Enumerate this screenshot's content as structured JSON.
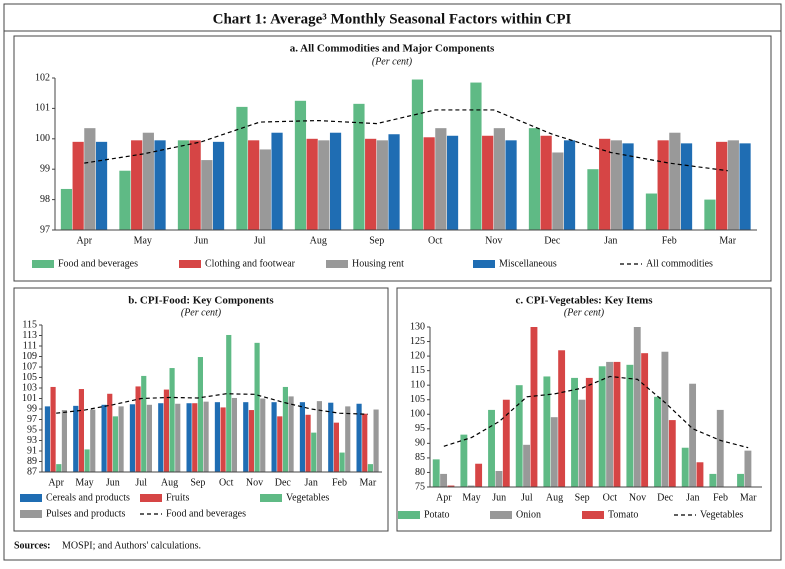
{
  "title": "Chart 1: Average³ Monthly Seasonal Factors within CPI",
  "source_label": "Sources:",
  "source_text": "MOSPI; and Authors' calculations.",
  "chart_data": [
    {
      "type": "bar",
      "title": "a. All Commodities and Major Components",
      "subtitle": "(Per cent)",
      "categories": [
        "Apr",
        "May",
        "Jun",
        "Jul",
        "Aug",
        "Sep",
        "Oct",
        "Nov",
        "Dec",
        "Jan",
        "Feb",
        "Mar"
      ],
      "ylim": [
        97,
        102
      ],
      "yticks": [
        97,
        98,
        99,
        100,
        101,
        102
      ],
      "series": [
        {
          "name": "Food and beverages",
          "color": "#5fba85",
          "values": [
            98.35,
            98.95,
            99.95,
            101.05,
            101.25,
            101.15,
            101.95,
            101.85,
            100.35,
            99.0,
            98.2,
            98.0
          ]
        },
        {
          "name": "Clothing and footwear",
          "color": "#d64545",
          "values": [
            99.9,
            99.95,
            99.95,
            99.95,
            100.0,
            100.0,
            100.05,
            100.1,
            100.1,
            100.0,
            99.95,
            99.9
          ]
        },
        {
          "name": "Housing rent",
          "color": "#999999",
          "values": [
            100.35,
            100.2,
            99.3,
            99.65,
            99.95,
            99.95,
            100.35,
            100.35,
            99.55,
            99.95,
            100.2,
            99.95
          ]
        },
        {
          "name": "Miscellaneous",
          "color": "#1f6db3",
          "values": [
            99.9,
            99.95,
            99.9,
            100.2,
            100.2,
            100.15,
            100.1,
            99.95,
            99.95,
            99.85,
            99.85,
            99.85
          ]
        },
        {
          "name": "All commodities",
          "color": "#000000",
          "type": "line",
          "dashed": true,
          "values": [
            99.2,
            99.5,
            99.9,
            100.55,
            100.6,
            100.5,
            100.95,
            100.95,
            100.15,
            99.55,
            99.2,
            98.95
          ]
        }
      ]
    },
    {
      "type": "bar",
      "title": "b. CPI-Food: Key Components",
      "subtitle": "(Per cent)",
      "categories": [
        "Apr",
        "May",
        "Jun",
        "Jul",
        "Aug",
        "Sep",
        "Oct",
        "Nov",
        "Dec",
        "Jan",
        "Feb",
        "Mar"
      ],
      "ylim": [
        87,
        115
      ],
      "yticks": [
        87,
        89,
        91,
        93,
        95,
        97,
        99,
        101,
        103,
        105,
        107,
        109,
        111,
        113,
        115
      ],
      "series": [
        {
          "name": "Cereals and products",
          "color": "#1f6db3",
          "values": [
            99.5,
            99.6,
            99.8,
            99.9,
            100.1,
            100.1,
            100.3,
            100.3,
            100.3,
            100.3,
            100.2,
            100.0
          ]
        },
        {
          "name": "Fruits",
          "color": "#d64545",
          "values": [
            103.2,
            102.8,
            101.9,
            103.3,
            102.7,
            100.1,
            99.3,
            98.8,
            97.6,
            97.9,
            96.4,
            98.1
          ]
        },
        {
          "name": "Vegetables",
          "color": "#5fba85",
          "values": [
            88.5,
            91.3,
            97.6,
            105.3,
            106.8,
            108.9,
            113.1,
            111.6,
            103.2,
            94.5,
            90.7,
            88.5
          ]
        },
        {
          "name": "Pulses and products",
          "color": "#999999",
          "values": [
            98.8,
            98.9,
            99.5,
            99.8,
            100.0,
            100.4,
            101.1,
            101.0,
            101.4,
            100.5,
            99.5,
            98.9
          ]
        },
        {
          "name": "Food and beverages",
          "color": "#000000",
          "type": "line",
          "dashed": true,
          "values": [
            98.2,
            98.8,
            99.8,
            101.0,
            101.2,
            101.1,
            101.9,
            101.8,
            100.3,
            99.0,
            98.2,
            98.0
          ]
        }
      ]
    },
    {
      "type": "bar",
      "title": "c. CPI-Vegetables: Key Items",
      "subtitle": "(Per cent)",
      "categories": [
        "Apr",
        "May",
        "Jun",
        "Jul",
        "Aug",
        "Sep",
        "Oct",
        "Nov",
        "Dec",
        "Jan",
        "Feb",
        "Mar"
      ],
      "ylim": [
        75,
        130
      ],
      "yticks": [
        75,
        80,
        85,
        90,
        95,
        100,
        105,
        110,
        115,
        120,
        125,
        130
      ],
      "series": [
        {
          "name": "Potato",
          "color": "#5fba85",
          "values": [
            84.5,
            93,
            101.5,
            110,
            113,
            112.5,
            116.5,
            117,
            106,
            88.5,
            79.5,
            79.5
          ]
        },
        {
          "name": "Onion",
          "color": "#999999",
          "values": [
            79.5,
            75.5,
            80.5,
            89.5,
            99,
            105,
            118,
            130,
            121.5,
            110.5,
            101.5,
            87.5
          ]
        },
        {
          "name": "Tomato",
          "color": "#d64545",
          "values": [
            75.5,
            83,
            105,
            130,
            122,
            112.5,
            118,
            121,
            98,
            83.5,
            75,
            75
          ]
        },
        {
          "name": "Vegetables",
          "color": "#000000",
          "type": "line",
          "dashed": true,
          "values": [
            89,
            92,
            97.5,
            106,
            107,
            109,
            113,
            112,
            104,
            95,
            91,
            88.5
          ]
        }
      ]
    }
  ]
}
